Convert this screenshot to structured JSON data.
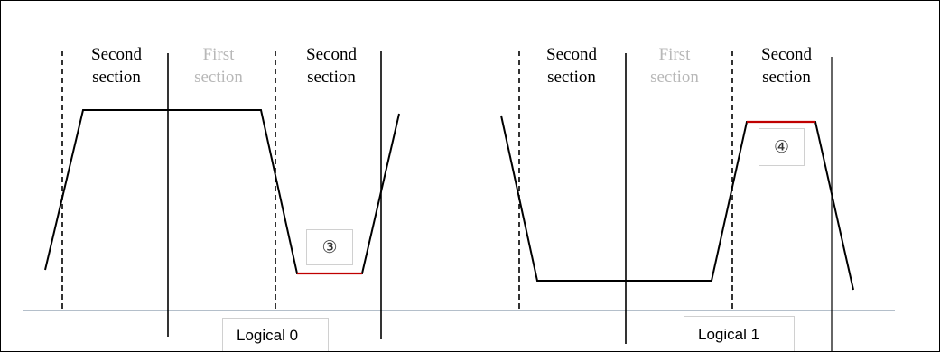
{
  "colors": {
    "waveform": "#000000",
    "highlight": "#c00000",
    "baseline": "#8899aa",
    "muted_label": "#b8b8b8"
  },
  "section_labels": {
    "second": "Second\nsection",
    "first": "First\nsection"
  },
  "markers": {
    "three": "③",
    "four": "④"
  },
  "logic_labels": {
    "zero": "Logical 0",
    "one": "Logical 1"
  }
}
